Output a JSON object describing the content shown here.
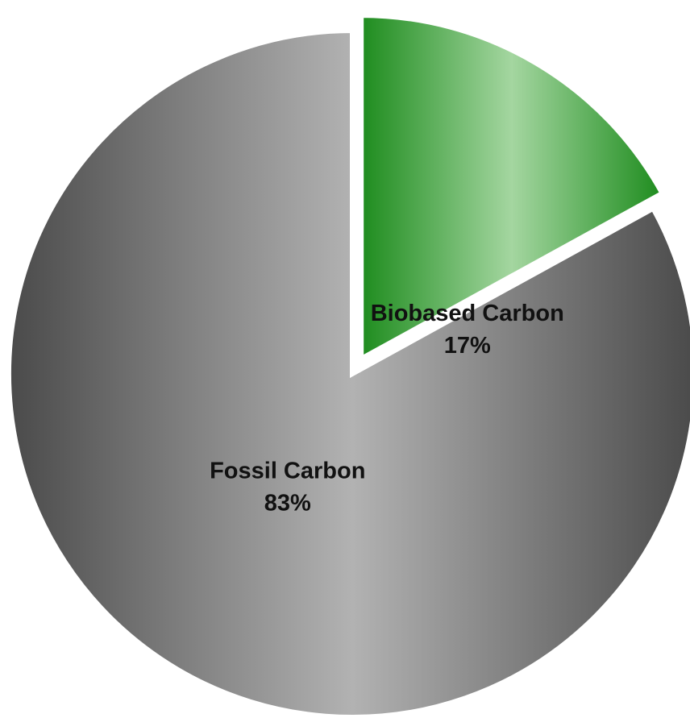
{
  "chart_data": {
    "type": "pie",
    "title": "",
    "slices": [
      {
        "label": "Biobased Carbon",
        "value": 17,
        "value_label": "17%",
        "color": "#2a9a2a",
        "exploded": true
      },
      {
        "label": "Fossil Carbon",
        "value": 83,
        "value_label": "83%",
        "color": "#a8a8a8",
        "exploded": false
      }
    ],
    "legend": "none",
    "start": "12 o'clock, clockwise"
  }
}
